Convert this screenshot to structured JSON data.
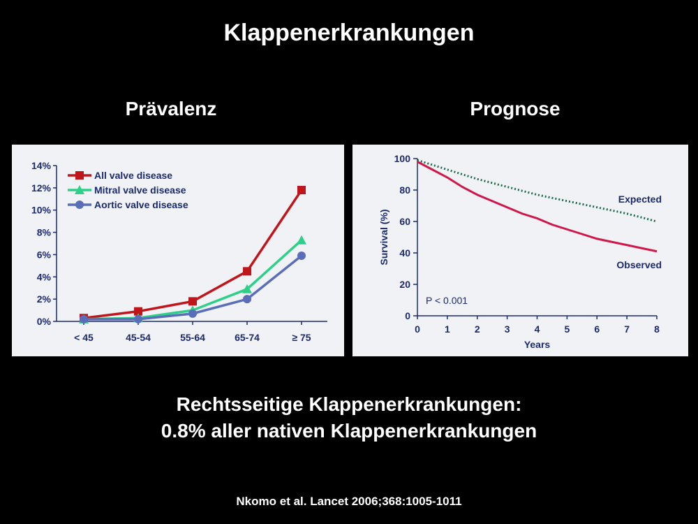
{
  "page": {
    "title": "Klappenerkrankungen",
    "left_heading": "Prävalenz",
    "right_heading": "Prognose",
    "summary_line1": "Rechtsseitige Klappenerkrankungen:",
    "summary_line2": "0.8% aller nativen Klappenerkrankungen",
    "citation": "Nkomo et al. Lancet 2006;368:1005-1011"
  },
  "chart_data": [
    {
      "type": "line",
      "categories": [
        "< 45",
        "45-54",
        "55-64",
        "65-74",
        "≥ 75"
      ],
      "yticks": [
        "0%",
        "2%",
        "4%",
        "6%",
        "8%",
        "10%",
        "12%",
        "14%"
      ],
      "ylim": [
        0,
        14
      ],
      "legend_position": "top-left",
      "series": [
        {
          "name": "All valve disease",
          "values": [
            0.3,
            0.9,
            1.8,
            4.5,
            11.8
          ],
          "color": "#c0161b",
          "marker": "square"
        },
        {
          "name": "Mitral valve disease",
          "values": [
            0.2,
            0.3,
            1.0,
            2.9,
            7.3
          ],
          "color": "#2ecf88",
          "marker": "triangle"
        },
        {
          "name": "Aortic valve disease",
          "values": [
            0.2,
            0.2,
            0.7,
            2.0,
            5.9
          ],
          "color": "#5a6db8",
          "marker": "circle"
        }
      ]
    },
    {
      "type": "line",
      "xlabel": "Years",
      "ylabel": "Survival (%)",
      "xlim": [
        0,
        8
      ],
      "ylim": [
        0,
        100
      ],
      "xticks": [
        0,
        1,
        2,
        3,
        4,
        5,
        6,
        7,
        8
      ],
      "yticks": [
        0,
        20,
        40,
        60,
        80,
        100
      ],
      "annotation": "P < 0.001",
      "series": [
        {
          "name": "Expected",
          "color": "#1a6b4a",
          "style": "dotted",
          "x": [
            0,
            1,
            2,
            3,
            4,
            5,
            6,
            7,
            8
          ],
          "y": [
            99,
            93,
            87,
            82,
            77,
            73,
            69,
            65,
            60
          ]
        },
        {
          "name": "Observed",
          "color": "#d0174a",
          "style": "solid",
          "x": [
            0,
            0.5,
            1,
            1.5,
            2,
            2.5,
            3,
            3.5,
            4,
            4.5,
            5,
            5.5,
            6,
            6.5,
            7,
            7.5,
            8
          ],
          "y": [
            98,
            93,
            88,
            82,
            77,
            73,
            69,
            65,
            62,
            58,
            55,
            52,
            49,
            47,
            45,
            43,
            41
          ]
        }
      ]
    }
  ]
}
